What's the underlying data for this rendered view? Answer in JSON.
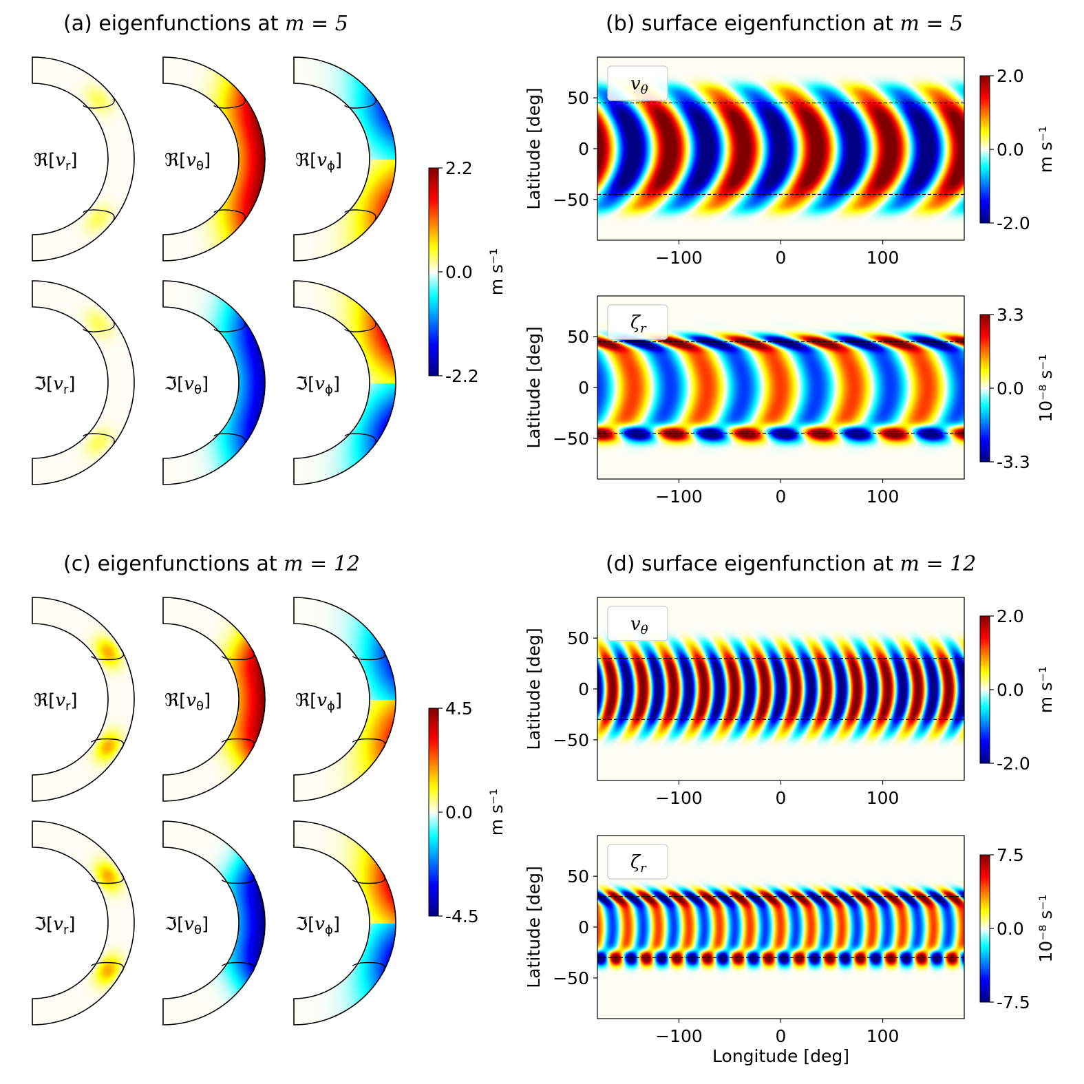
{
  "colormap": {
    "stops": [
      "#000080",
      "#0000ff",
      "#00ffff",
      "#fffff6",
      "#ffff00",
      "#ff0000",
      "#800000"
    ],
    "background": "#fdfdf6"
  },
  "shell_labels": {
    "re_vr": "ℜ[v_r]",
    "re_vt": "ℜ[v_θ]",
    "re_vp": "ℜ[v_ϕ]",
    "im_vr": "ℑ[v_r]",
    "im_vt": "ℑ[v_θ]",
    "im_vp": "ℑ[v_ϕ]"
  },
  "chart_data": [
    {
      "id": "a",
      "type": "heatmap",
      "title": "(a) eigenfunctions at m = 5",
      "title_prefix": "(a) eigenfunctions at ",
      "title_math": "m = 5",
      "colorbar": {
        "min": -2.2,
        "max": 2.2,
        "ticks": [
          "2.2",
          "0.0",
          "-2.2"
        ],
        "unit": "m s⁻¹"
      },
      "m": 5,
      "panels": [
        {
          "label": "re_vr",
          "amp": 0.2,
          "sign": 1
        },
        {
          "label": "re_vt",
          "amp": 1.0,
          "sign": 1
        },
        {
          "label": "re_vp",
          "amp": 0.7,
          "sign": -1
        },
        {
          "label": "im_vr",
          "amp": 0.2,
          "sign": 1
        },
        {
          "label": "im_vt",
          "amp": 0.9,
          "sign": -1
        },
        {
          "label": "im_vp",
          "amp": 0.8,
          "sign": 1
        }
      ]
    },
    {
      "id": "b",
      "type": "heatmap",
      "title": "(b) surface eigenfunction at m = 5",
      "title_prefix": "(b) surface eigenfunction at ",
      "title_math": "m = 5",
      "m": 5,
      "xlabel": "",
      "xlim": [
        -180,
        180
      ],
      "x_ticks": [
        "−100",
        "0",
        "100"
      ],
      "x_tick_values": [
        -100,
        0,
        100
      ],
      "ylim": [
        -90,
        90
      ],
      "y_ticks": [
        "50",
        "0",
        "−50"
      ],
      "y_tick_values": [
        50,
        0,
        -50
      ],
      "ylabel": "Latitude [deg]",
      "critical_latitude": 45,
      "plots": [
        {
          "legend": "v_θ",
          "kind": "vtheta",
          "colorbar": {
            "min": -2.0,
            "max": 2.0,
            "ticks": [
              "2.0",
              "0.0",
              "-2.0"
            ],
            "unit": "m s⁻¹"
          }
        },
        {
          "legend": "ζ_r",
          "kind": "zeta",
          "colorbar": {
            "min": -3.3,
            "max": 3.3,
            "ticks": [
              "3.3",
              "0.0",
              "-3.3"
            ],
            "unit": "10⁻⁸ s⁻¹"
          }
        }
      ]
    },
    {
      "id": "c",
      "type": "heatmap",
      "title": "(c) eigenfunctions at m = 12",
      "title_prefix": "(c) eigenfunctions at ",
      "title_math": "m = 12",
      "colorbar": {
        "min": -4.5,
        "max": 4.5,
        "ticks": [
          "4.5",
          "0.0",
          "-4.5"
        ],
        "unit": "m s⁻¹"
      },
      "m": 12,
      "panels": [
        {
          "label": "re_vr",
          "amp": 0.5,
          "sign": 1
        },
        {
          "label": "re_vt",
          "amp": 1.0,
          "sign": 1
        },
        {
          "label": "re_vp",
          "amp": 0.7,
          "sign": -1
        },
        {
          "label": "im_vr",
          "amp": 0.5,
          "sign": 1
        },
        {
          "label": "im_vt",
          "amp": 1.0,
          "sign": -1
        },
        {
          "label": "im_vp",
          "amp": 0.8,
          "sign": 1
        }
      ]
    },
    {
      "id": "d",
      "type": "heatmap",
      "title": "(d) surface eigenfunction at m = 12",
      "title_prefix": "(d) surface eigenfunction at ",
      "title_math": "m = 12",
      "m": 12,
      "xlabel": "Longitude [deg]",
      "xlim": [
        -180,
        180
      ],
      "x_ticks": [
        "−100",
        "0",
        "100"
      ],
      "x_tick_values": [
        -100,
        0,
        100
      ],
      "ylim": [
        -90,
        90
      ],
      "y_ticks": [
        "50",
        "0",
        "−50"
      ],
      "y_tick_values": [
        50,
        0,
        -50
      ],
      "ylabel": "Latitude [deg]",
      "critical_latitude": 30,
      "plots": [
        {
          "legend": "v_θ",
          "kind": "vtheta",
          "colorbar": {
            "min": -2.0,
            "max": 2.0,
            "ticks": [
              "2.0",
              "0.0",
              "-2.0"
            ],
            "unit": "m s⁻¹"
          }
        },
        {
          "legend": "ζ_r",
          "kind": "zeta",
          "colorbar": {
            "min": -7.5,
            "max": 7.5,
            "ticks": [
              "7.5",
              "0.0",
              "-7.5"
            ],
            "unit": "10⁻⁸ s⁻¹"
          }
        }
      ]
    }
  ]
}
